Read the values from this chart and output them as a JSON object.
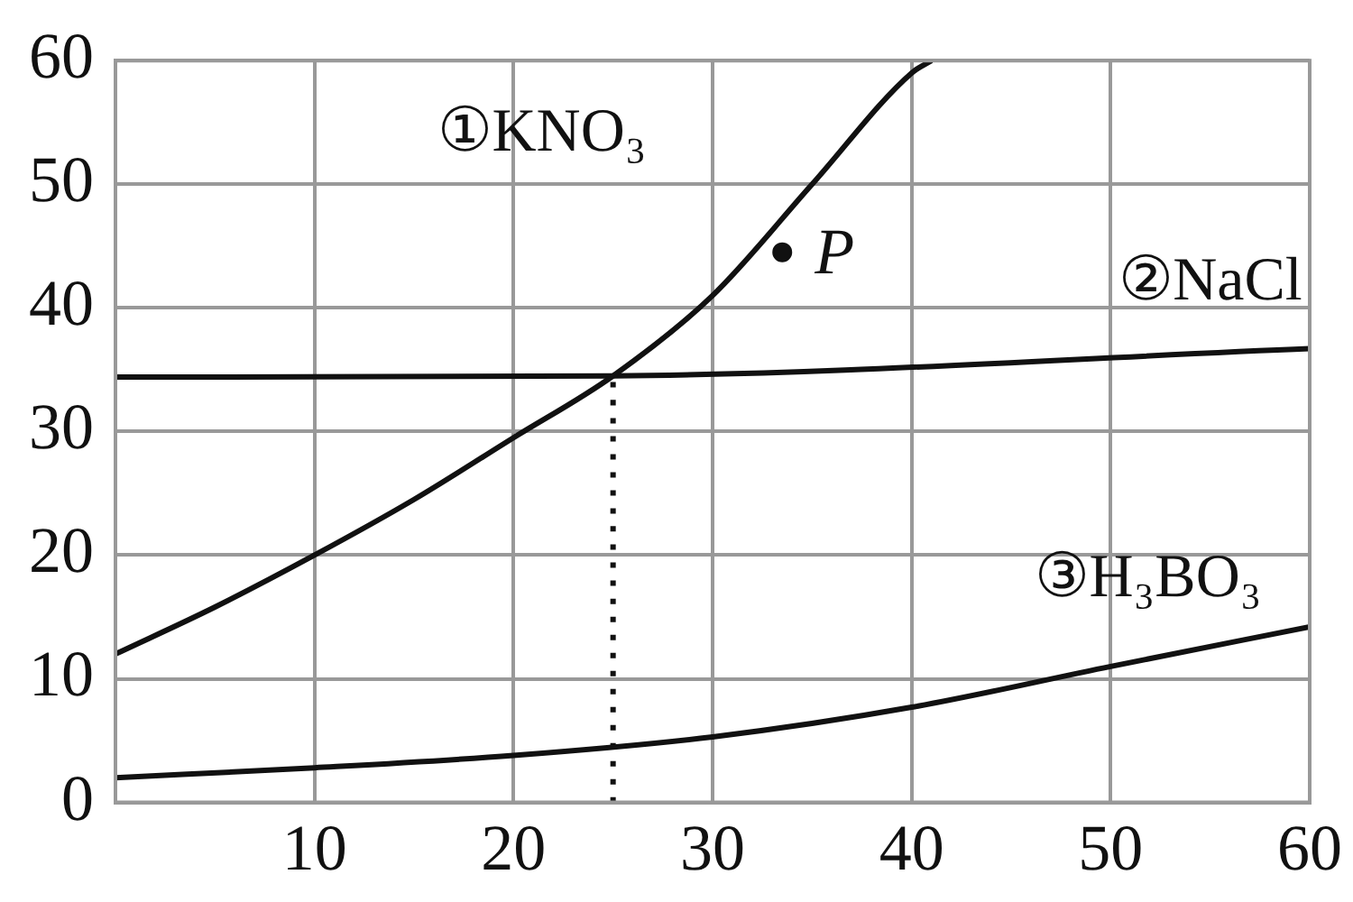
{
  "chart_data": {
    "type": "line",
    "xlim": [
      0,
      60
    ],
    "xticks": [
      {
        "value": 0,
        "label": null
      },
      10,
      20,
      30,
      40,
      50,
      60
    ],
    "ylim": [
      0,
      60
    ],
    "yticks": [
      0,
      10,
      20,
      30,
      40,
      50,
      60
    ],
    "grid": true,
    "legend": false,
    "marker": "none",
    "series": [
      {
        "name": "①KNO₃",
        "color": "#111111",
        "x": [
          0,
          5,
          10,
          15,
          20,
          25,
          30,
          35,
          40,
          41
        ],
        "values": [
          12,
          15.8,
          20,
          24.5,
          29.5,
          34.5,
          41,
          50,
          59,
          60
        ]
      },
      {
        "name": "②NaCl",
        "color": "#111111",
        "x": [
          0,
          25,
          60
        ],
        "values": [
          34.4,
          34.5,
          36.7
        ]
      },
      {
        "name": "③H₃BO₃",
        "color": "#111111",
        "x": [
          0,
          10,
          20,
          30,
          40,
          50,
          60
        ],
        "values": [
          2,
          2.8,
          3.8,
          5.3,
          7.7,
          11,
          14.2
        ]
      },
      {
        "color": "#111111",
        "line_style": "dotted",
        "x": [
          25,
          25
        ],
        "values": [
          0,
          34.5
        ]
      },
      {
        "name": "P",
        "type": "scatter",
        "marker": "circle",
        "color": "#111111",
        "x": [
          33.5
        ],
        "values": [
          44.5
        ]
      }
    ]
  }
}
